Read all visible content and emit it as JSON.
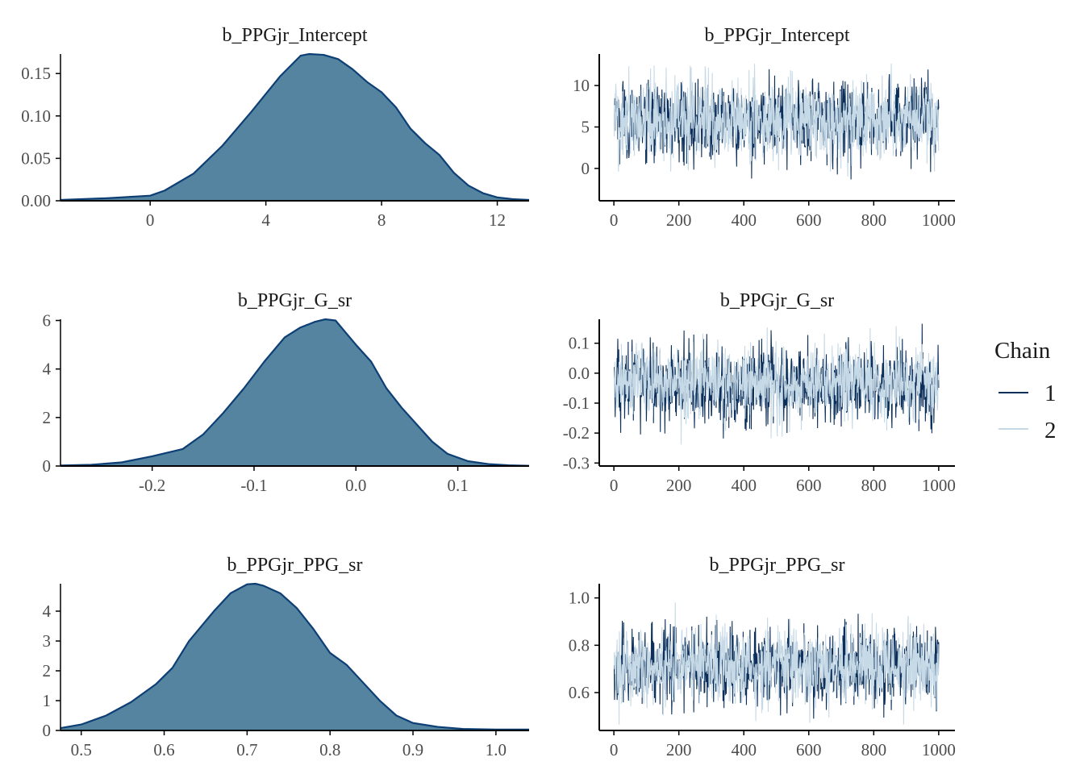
{
  "legend": {
    "title": "Chain",
    "entries": [
      {
        "label": "1",
        "color": "#0b2f5a"
      },
      {
        "label": "2",
        "color": "#c6d9e6"
      }
    ]
  },
  "colors": {
    "density_fill": "#5584a1",
    "density_line": "#0d3f75",
    "chain_1": "#0b2f5a",
    "chain_2": "#c6d9e6",
    "axis": "#000000"
  },
  "chart_data": [
    {
      "type": "area",
      "title": "b_PPGjr_Intercept",
      "xlim": [
        -3.1,
        13.1
      ],
      "ylim": [
        0,
        0.173
      ],
      "xticks": [
        0,
        4,
        8,
        12
      ],
      "xtick_labels": [
        "0",
        "4",
        "8",
        "12"
      ],
      "yticks": [
        0,
        0.05,
        0.1,
        0.15
      ],
      "ytick_labels": [
        "0.00",
        "0.05",
        "0.10",
        "0.15"
      ],
      "x": [
        -3.1,
        -1.5,
        0,
        0.5,
        1.5,
        2.5,
        3.5,
        4.5,
        5.2,
        5.5,
        6.0,
        6.5,
        7.0,
        7.5,
        8.0,
        8.5,
        9.0,
        9.5,
        10.0,
        10.5,
        11.0,
        11.5,
        12.0,
        12.5,
        13.1
      ],
      "y": [
        0.001,
        0.003,
        0.006,
        0.012,
        0.032,
        0.065,
        0.105,
        0.147,
        0.171,
        0.173,
        0.172,
        0.167,
        0.155,
        0.14,
        0.128,
        0.11,
        0.085,
        0.068,
        0.054,
        0.033,
        0.018,
        0.009,
        0.004,
        0.002,
        0.001
      ]
    },
    {
      "type": "line",
      "title": "b_PPGjr_Intercept",
      "xlim": [
        -45,
        1050
      ],
      "ylim": [
        -3.9,
        13.8
      ],
      "xticks": [
        0,
        200,
        400,
        600,
        800,
        1000
      ],
      "xtick_labels": [
        "0",
        "200",
        "400",
        "600",
        "800",
        "1000"
      ],
      "yticks": [
        0,
        5,
        10
      ],
      "ytick_labels": [
        "0",
        "5",
        "10"
      ],
      "iterations": 1000,
      "series": [
        {
          "name": "1",
          "mean": 5.8,
          "sd": 2.3,
          "min": -2.5,
          "max": 12.2
        },
        {
          "name": "2",
          "mean": 5.9,
          "sd": 2.3,
          "min": -3.2,
          "max": 13.0
        }
      ]
    },
    {
      "type": "area",
      "title": "b_PPGjr_G_sr",
      "xlim": [
        -0.29,
        0.17
      ],
      "ylim": [
        0,
        6.05
      ],
      "xticks": [
        -0.2,
        -0.1,
        0.0,
        0.1
      ],
      "xtick_labels": [
        "-0.2",
        "-0.1",
        "0.0",
        "0.1"
      ],
      "yticks": [
        0,
        2,
        4,
        6
      ],
      "ytick_labels": [
        "0",
        "2",
        "4",
        "6"
      ],
      "x": [
        -0.29,
        -0.26,
        -0.23,
        -0.2,
        -0.17,
        -0.15,
        -0.13,
        -0.11,
        -0.09,
        -0.07,
        -0.055,
        -0.04,
        -0.03,
        -0.02,
        -0.01,
        0.0,
        0.015,
        0.03,
        0.045,
        0.06,
        0.075,
        0.09,
        0.11,
        0.13,
        0.15,
        0.17
      ],
      "y": [
        0.02,
        0.05,
        0.15,
        0.4,
        0.7,
        1.3,
        2.2,
        3.2,
        4.3,
        5.3,
        5.7,
        5.95,
        6.05,
        6.0,
        5.5,
        5.0,
        4.3,
        3.2,
        2.4,
        1.7,
        1.0,
        0.5,
        0.2,
        0.08,
        0.03,
        0.01
      ]
    },
    {
      "type": "line",
      "title": "b_PPGjr_G_sr",
      "xlim": [
        -45,
        1050
      ],
      "ylim": [
        -0.31,
        0.18
      ],
      "xticks": [
        0,
        200,
        400,
        600,
        800,
        1000
      ],
      "xtick_labels": [
        "0",
        "200",
        "400",
        "600",
        "800",
        "1000"
      ],
      "yticks": [
        -0.3,
        -0.2,
        -0.1,
        0.0,
        0.1
      ],
      "ytick_labels": [
        "-0.3",
        "-0.2",
        "-0.1",
        "0.0",
        "0.1"
      ],
      "iterations": 1000,
      "series": [
        {
          "name": "1",
          "mean": -0.035,
          "sd": 0.065,
          "min": -0.29,
          "max": 0.17
        },
        {
          "name": "2",
          "mean": -0.03,
          "sd": 0.06,
          "min": -0.24,
          "max": 0.16
        }
      ]
    },
    {
      "type": "area",
      "title": "b_PPGjr_PPG_sr",
      "xlim": [
        0.475,
        1.04
      ],
      "ylim": [
        0,
        4.92
      ],
      "xticks": [
        0.5,
        0.6,
        0.7,
        0.8,
        0.9,
        1.0
      ],
      "xtick_labels": [
        "0.5",
        "0.6",
        "0.7",
        "0.8",
        "0.9",
        "1.0"
      ],
      "yticks": [
        0,
        1,
        2,
        3,
        4
      ],
      "ytick_labels": [
        "0",
        "1",
        "2",
        "3",
        "4"
      ],
      "x": [
        0.475,
        0.5,
        0.53,
        0.56,
        0.59,
        0.61,
        0.63,
        0.66,
        0.68,
        0.7,
        0.71,
        0.72,
        0.74,
        0.76,
        0.78,
        0.8,
        0.82,
        0.84,
        0.86,
        0.88,
        0.9,
        0.93,
        0.96,
        1.0,
        1.04
      ],
      "y": [
        0.08,
        0.2,
        0.5,
        0.95,
        1.55,
        2.1,
        3.0,
        4.0,
        4.6,
        4.9,
        4.92,
        4.85,
        4.6,
        4.1,
        3.4,
        2.6,
        2.2,
        1.6,
        1.0,
        0.5,
        0.25,
        0.12,
        0.05,
        0.03,
        0.03
      ]
    },
    {
      "type": "line",
      "title": "b_PPGjr_PPG_sr",
      "xlim": [
        -45,
        1050
      ],
      "ylim": [
        0.44,
        1.06
      ],
      "xticks": [
        0,
        200,
        400,
        600,
        800,
        1000
      ],
      "xtick_labels": [
        "0",
        "200",
        "400",
        "600",
        "800",
        "1000"
      ],
      "yticks": [
        0.6,
        0.8,
        1.0
      ],
      "ytick_labels": [
        "0.6",
        "0.8",
        "1.0"
      ],
      "iterations": 1000,
      "series": [
        {
          "name": "1",
          "mean": 0.71,
          "sd": 0.08,
          "min": 0.48,
          "max": 1.02
        },
        {
          "name": "2",
          "mean": 0.715,
          "sd": 0.08,
          "min": 0.46,
          "max": 1.04
        }
      ]
    }
  ]
}
